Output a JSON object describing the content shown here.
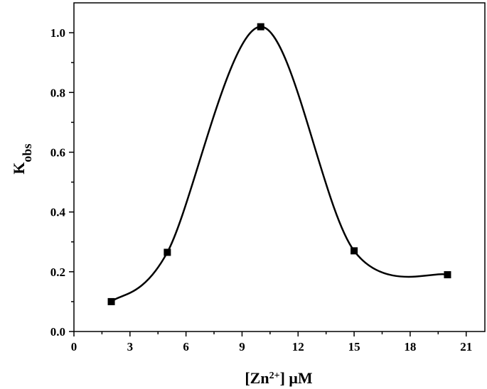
{
  "chart_data": {
    "type": "scatter",
    "series": [
      {
        "x": [
          2,
          5,
          10,
          15,
          20
        ],
        "y": [
          0.1,
          0.265,
          1.02,
          0.27,
          0.19
        ],
        "marker": "square",
        "line": "smooth",
        "color": "#000000"
      }
    ],
    "xlabel": {
      "prefix": "[Zn",
      "sup": "2+",
      "suffix": "] μM"
    },
    "ylabel": {
      "main": "K",
      "sub": "obs"
    },
    "xlim": [
      0,
      22
    ],
    "ylim": [
      0,
      1.1
    ],
    "xticks": [
      0,
      3,
      6,
      9,
      12,
      15,
      18,
      21
    ],
    "yticks": [
      0.0,
      0.2,
      0.4,
      0.6,
      0.8,
      1.0
    ],
    "xtick_labels": [
      "0",
      "3",
      "6",
      "9",
      "12",
      "15",
      "18",
      "21"
    ],
    "ytick_labels": [
      "0.0",
      "0.2",
      "0.4",
      "0.6",
      "0.8",
      "1.0"
    ],
    "grid": false,
    "legend": false
  }
}
